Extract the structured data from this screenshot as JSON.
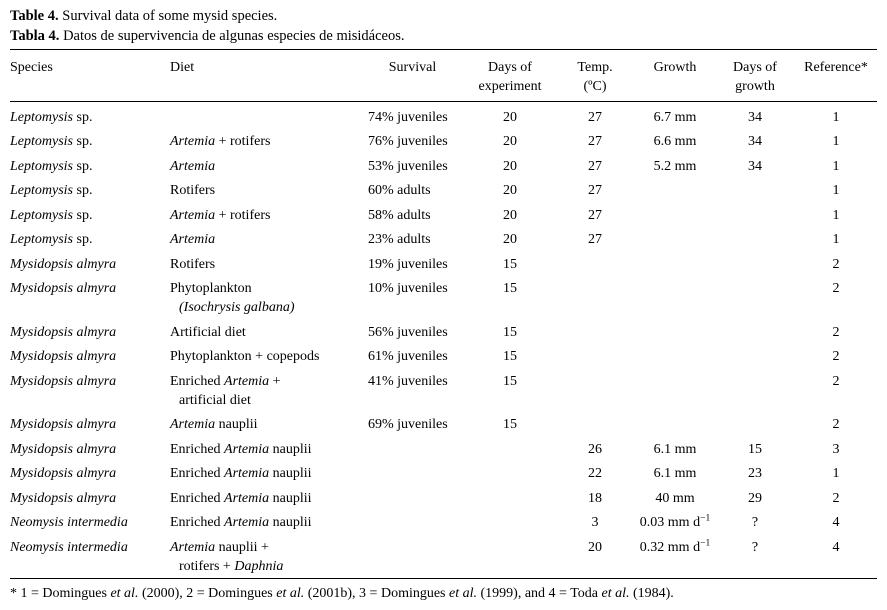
{
  "captions": {
    "en_label": "Table 4.",
    "en_text": "Survival data of some mysid species.",
    "es_label": "Tabla 4.",
    "es_text": "Datos de supervivencia de algunas especies de misidáceos."
  },
  "table": {
    "columns": [
      {
        "label": "Species",
        "align": "left"
      },
      {
        "label": "Diet",
        "align": "left"
      },
      {
        "label": "Survival",
        "align": "center"
      },
      {
        "label": "Days of\nexperiment",
        "align": "center"
      },
      {
        "label": "Temp.\n(ºC)",
        "align": "center"
      },
      {
        "label": "Growth",
        "align": "center"
      },
      {
        "label": "Days of\ngrowth",
        "align": "center"
      },
      {
        "label": "Reference*",
        "align": "center"
      }
    ],
    "rows": [
      [
        "_Leptomysis_ sp.",
        "",
        "74% juveniles",
        "20",
        "27",
        "6.7 mm",
        "34",
        "1"
      ],
      [
        "_Leptomysis_ sp.",
        "_Artemia_ + rotifers",
        "76% juveniles",
        "20",
        "27",
        "6.6 mm",
        "34",
        "1"
      ],
      [
        "_Leptomysis_ sp.",
        "_Artemia_",
        "53% juveniles",
        "20",
        "27",
        "5.2 mm",
        "34",
        "1"
      ],
      [
        "_Leptomysis_ sp.",
        "Rotifers",
        "60% adults",
        "20",
        "27",
        "",
        "",
        "1"
      ],
      [
        "_Leptomysis_ sp.",
        "_Artemia_ + rotifers",
        "58% adults",
        "20",
        "27",
        "",
        "",
        "1"
      ],
      [
        "_Leptomysis_ sp.",
        "_Artemia_",
        "23% adults",
        "20",
        "27",
        "",
        "",
        "1"
      ],
      [
        "_Mysidopsis almyra_",
        "Rotifers",
        "19% juveniles",
        "15",
        "",
        "",
        "",
        "2"
      ],
      [
        "_Mysidopsis almyra_",
        "Phytoplankton\n_(Isochrysis galbana)_",
        "10% juveniles",
        "15",
        "",
        "",
        "",
        "2"
      ],
      [
        "_Mysidopsis almyra_",
        "Artificial diet",
        "56% juveniles",
        "15",
        "",
        "",
        "",
        "2"
      ],
      [
        "_Mysidopsis almyra_",
        "Phytoplankton + copepods",
        "61% juveniles",
        "15",
        "",
        "",
        "",
        "2"
      ],
      [
        "_Mysidopsis almyra_",
        "Enriched _Artemia_ +\nartificial diet",
        "41% juveniles",
        "15",
        "",
        "",
        "",
        "2"
      ],
      [
        "_Mysidopsis almyra_",
        "_Artemia_ nauplii",
        "69% juveniles",
        "15",
        "",
        "",
        "",
        "2"
      ],
      [
        "_Mysidopsis almyra_",
        "Enriched _Artemia_ nauplii",
        "",
        "",
        "26",
        "6.1 mm",
        "15",
        "3"
      ],
      [
        "_Mysidopsis almyra_",
        "Enriched _Artemia_ nauplii",
        "",
        "",
        "22",
        "6.1 mm",
        "23",
        "1"
      ],
      [
        "_Mysidopsis almyra_",
        "Enriched _Artemia_ nauplii",
        "",
        "",
        "18",
        "40 mm",
        "29",
        "2"
      ],
      [
        "_Neomysis intermedia_",
        "Enriched _Artemia_ nauplii",
        "",
        "",
        "3",
        "0.03 mm d^−1^",
        "?",
        "4"
      ],
      [
        "_Neomysis intermedia_",
        "_Artemia_ nauplii +\nrotifers + _Daphnia_",
        "",
        "",
        "20",
        "0.32 mm d^−1^",
        "?",
        "4"
      ]
    ]
  },
  "footnote": "* 1 = Domingues _et al._ (2000), 2 = Domingues _et al._ (2001b), 3 = Domingues _et al._ (1999), and 4 = Toda _et al._ (1984)."
}
